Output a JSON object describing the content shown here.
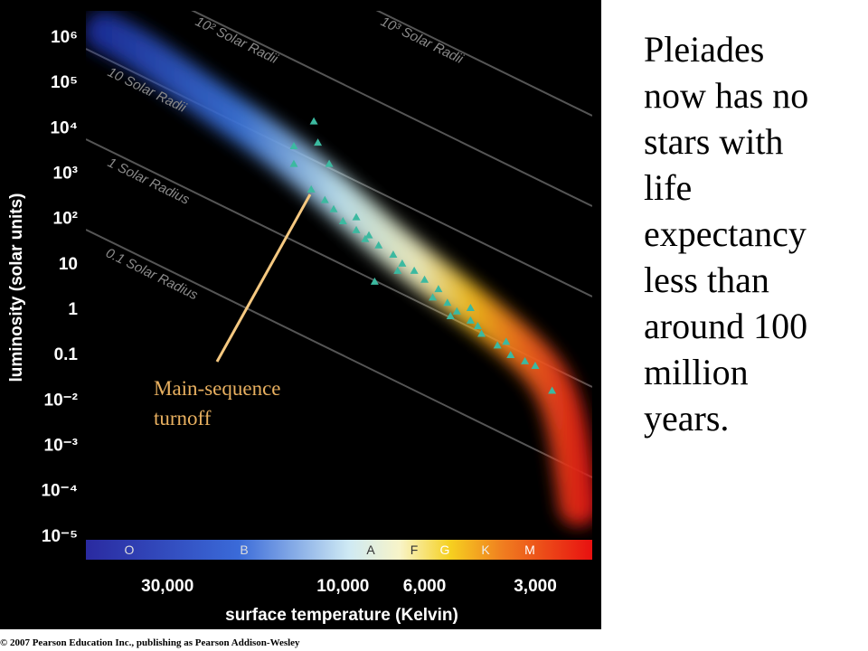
{
  "chart_data": {
    "type": "scatter",
    "x_label": "surface temperature (Kelvin)",
    "y_label": "luminosity (solar units)",
    "xscale": "log",
    "yscale": "log",
    "xlim": [
      50000,
      2100
    ],
    "ylim": [
      6e-06,
      3000000
    ],
    "xticks": [
      {
        "value": 30000,
        "label": "30,000"
      },
      {
        "value": 10000,
        "label": "10,000"
      },
      {
        "value": 6000,
        "label": "6,000"
      },
      {
        "value": 3000,
        "label": "3,000"
      }
    ],
    "yticks": [
      {
        "value": 1000000,
        "label": "10⁶"
      },
      {
        "value": 100000,
        "label": "10⁵"
      },
      {
        "value": 10000,
        "label": "10⁴"
      },
      {
        "value": 1000,
        "label": "10³"
      },
      {
        "value": 100,
        "label": "10²"
      },
      10,
      1,
      0.1,
      {
        "value": 0.01,
        "label": "10⁻²"
      },
      {
        "value": 0.001,
        "label": "10⁻³"
      },
      {
        "value": 0.0001,
        "label": "10⁻⁴"
      },
      {
        "value": 1e-05,
        "label": "10⁻⁵"
      }
    ],
    "grid": false,
    "series": [
      {
        "name": "Pleiades",
        "color": "#3cb9a0",
        "marker": "triangle",
        "x": [
          12000,
          13600,
          11700,
          10900,
          13600,
          12200,
          11200,
          10600,
          10000,
          9200,
          8700,
          8000,
          7300,
          6900,
          6400,
          6000,
          5500,
          5200,
          4900,
          4500,
          4200,
          3800,
          3500,
          3200,
          3000,
          2700,
          8200,
          8500,
          7100,
          5100,
          4300,
          3600,
          4500,
          5700,
          9200
        ],
        "values": [
          13000,
          3700,
          4400,
          1500,
          1500,
          410,
          240,
          150,
          82,
          52,
          33,
          24,
          15,
          9.5,
          6.6,
          4.2,
          2.6,
          1.3,
          0.84,
          0.53,
          0.27,
          0.15,
          0.092,
          0.067,
          0.053,
          0.015,
          3.8,
          40,
          6.6,
          0.66,
          0.4,
          0.18,
          1.0,
          1.7,
          100
        ]
      }
    ],
    "spectral_classes": [
      "O",
      "B",
      "A",
      "F",
      "G",
      "K",
      "M"
    ],
    "radius_labels": [
      "10² Solar Radii",
      "10³ Solar Radii",
      "10 Solar Radii",
      "1 Solar Radius",
      "0.1 Solar Radius"
    ],
    "annotation": [
      "Main-sequence",
      "turnoff"
    ],
    "credit": "© 2007 Pearson Education Inc., publishing as Pearson Addison-Wesley"
  },
  "body": [
    "Pleiades",
    "now has no",
    "stars with",
    "life",
    "expectancy",
    "less than",
    "around 100",
    "million",
    "years."
  ]
}
